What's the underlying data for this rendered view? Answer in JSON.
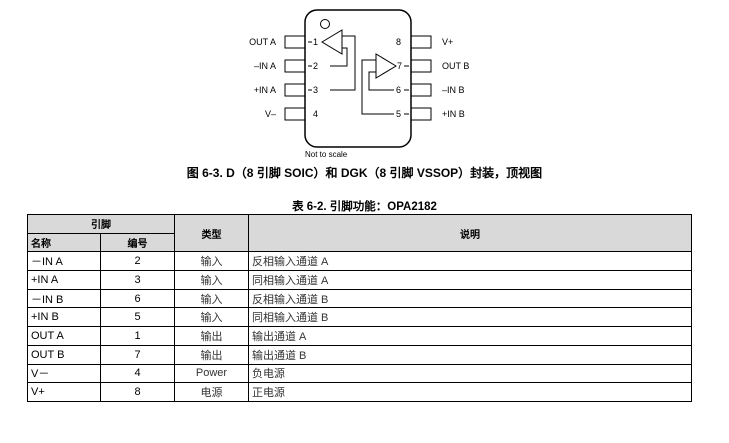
{
  "diagram": {
    "left_pins": [
      {
        "label": "OUT A",
        "number": "1"
      },
      {
        "label": "–IN A",
        "number": "2"
      },
      {
        "label": "+IN A",
        "number": "3"
      },
      {
        "label": "V–",
        "number": "4"
      }
    ],
    "right_pins": [
      {
        "label": "V+",
        "number": "8"
      },
      {
        "label": "OUT B",
        "number": "7"
      },
      {
        "label": "–IN B",
        "number": "6"
      },
      {
        "label": "+IN B",
        "number": "5"
      }
    ],
    "note": "Not to scale"
  },
  "figure_caption": "图 6-3. D（8 引脚 SOIC）和 DGK（8 引脚 VSSOP）封装，顶视图",
  "table_title": "表 6-2. 引脚功能：OPA2182",
  "table": {
    "headers": {
      "pin": "引脚",
      "name": "名称",
      "number": "编号",
      "type": "类型",
      "description": "说明"
    },
    "rows": [
      {
        "name": "－IN A",
        "number": "2",
        "type": "输入",
        "description": "反相输入通道 A"
      },
      {
        "name": "+IN A",
        "number": "3",
        "type": "输入",
        "description": "同相输入通道 A"
      },
      {
        "name": "－IN B",
        "number": "6",
        "type": "输入",
        "description": "反相输入通道 B"
      },
      {
        "name": "+IN B",
        "number": "5",
        "type": "输入",
        "description": "同相输入通道 B"
      },
      {
        "name": "OUT A",
        "number": "1",
        "type": "输出",
        "description": "输出通道 A"
      },
      {
        "name": "OUT B",
        "number": "7",
        "type": "输出",
        "description": "输出通道 B"
      },
      {
        "name": "V－",
        "number": "4",
        "type": "Power",
        "description": "负电源"
      },
      {
        "name": "V+",
        "number": "8",
        "type": "电源",
        "description": "正电源"
      }
    ]
  }
}
